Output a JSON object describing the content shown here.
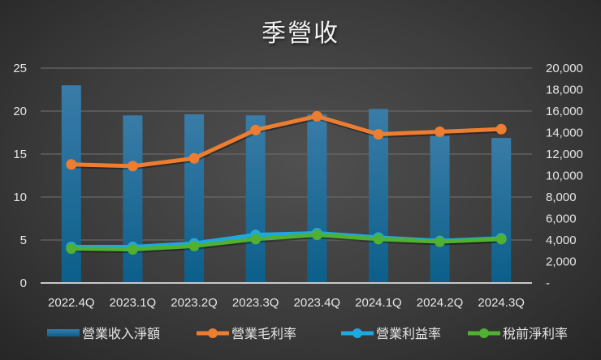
{
  "chart_data": {
    "type": "bar+line",
    "title": "季營收",
    "categories": [
      "2022.4Q",
      "2023.1Q",
      "2023.2Q",
      "2023.3Q",
      "2023.4Q",
      "2024.1Q",
      "2024.2Q",
      "2024.3Q"
    ],
    "series": [
      {
        "name": "營業收入淨額",
        "type": "bar",
        "axis": "right",
        "color": "#1f6e99",
        "values": [
          18400,
          15600,
          15700,
          15600,
          15700,
          16200,
          13700,
          13500
        ]
      },
      {
        "name": "營業毛利率",
        "type": "line",
        "axis": "left",
        "color": "#ed7d31",
        "values": [
          13.8,
          13.6,
          14.5,
          17.8,
          19.4,
          17.3,
          17.6,
          17.9
        ]
      },
      {
        "name": "營業利益率",
        "type": "line",
        "axis": "left",
        "color": "#1fa8e0",
        "values": [
          4.2,
          4.2,
          4.6,
          5.6,
          5.8,
          5.3,
          4.9,
          5.2
        ]
      },
      {
        "name": "稅前淨利率",
        "type": "line",
        "axis": "left",
        "color": "#4fb032",
        "values": [
          4.0,
          3.9,
          4.3,
          5.1,
          5.6,
          5.1,
          4.8,
          5.1
        ]
      }
    ],
    "y_left": {
      "ylim": [
        0,
        25
      ],
      "ticks": [
        "0",
        "5",
        "10",
        "15",
        "20",
        "25"
      ]
    },
    "y_right": {
      "ylim": [
        0,
        20000
      ],
      "ticks": [
        "-",
        "2,000",
        "4,000",
        "6,000",
        "8,000",
        "10,000",
        "12,000",
        "14,000",
        "16,000",
        "18,000",
        "20,000"
      ]
    },
    "xlabel": "",
    "ylabel": "",
    "grid": true,
    "legend_position": "bottom"
  }
}
